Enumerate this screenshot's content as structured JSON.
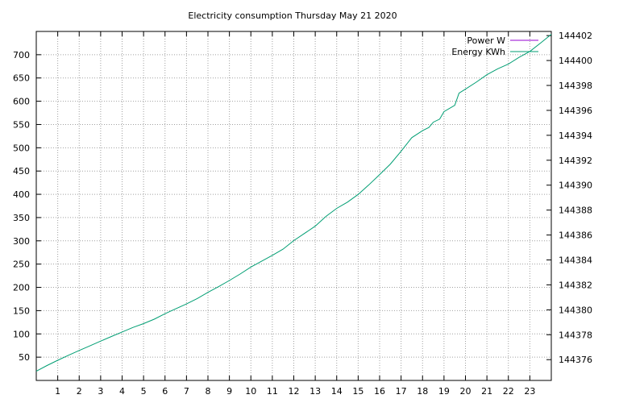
{
  "chart_data": {
    "type": "line",
    "title": "Electricity consumption Thursday May 21 2020",
    "xlabel": "",
    "ylabel": "",
    "y2label": "",
    "xlim": [
      0,
      24
    ],
    "ylim": [
      0,
      750
    ],
    "y2lim": [
      144374.333,
      144402.333
    ],
    "x_ticks": [
      1,
      2,
      3,
      4,
      5,
      6,
      7,
      8,
      9,
      10,
      11,
      12,
      13,
      14,
      15,
      16,
      17,
      18,
      19,
      20,
      21,
      22,
      23
    ],
    "y_ticks": [
      50,
      100,
      150,
      200,
      250,
      300,
      350,
      400,
      450,
      500,
      550,
      600,
      650,
      700
    ],
    "y2_ticks": [
      144376,
      144378,
      144380,
      144382,
      144384,
      144386,
      144388,
      144390,
      144392,
      144394,
      144396,
      144398,
      144400,
      144402
    ],
    "grid": true,
    "legend_position": "top-right",
    "series": [
      {
        "name": "Power W",
        "axis": "y",
        "color": "#9400d3",
        "x": [],
        "values": []
      },
      {
        "name": "Energy KWh",
        "axis": "y2",
        "color": "#009e73",
        "x": [
          0,
          0.5,
          1,
          1.5,
          2,
          2.5,
          3,
          3.5,
          4,
          4.5,
          5,
          5.5,
          6,
          6.5,
          7,
          7.5,
          8,
          8.5,
          9,
          9.5,
          10,
          10.5,
          11,
          11.5,
          12,
          12.5,
          13,
          13.5,
          14,
          14.5,
          15,
          15.5,
          16,
          16.5,
          17,
          17.5,
          18,
          18.3,
          18.5,
          18.8,
          19,
          19.5,
          19.7,
          20,
          20.5,
          21,
          21.5,
          22,
          22.5,
          23,
          23.5,
          24
        ],
        "values": [
          144375.07,
          144375.53,
          144375.95,
          144376.35,
          144376.74,
          144377.11,
          144377.49,
          144377.86,
          144378.22,
          144378.58,
          144378.89,
          144379.25,
          144379.69,
          144380.08,
          144380.47,
          144380.9,
          144381.4,
          144381.86,
          144382.35,
          144382.87,
          144383.43,
          144383.9,
          144384.37,
          144384.87,
          144385.55,
          144386.13,
          144386.71,
          144387.49,
          144388.14,
          144388.64,
          144389.26,
          144390.03,
          144390.85,
          144391.69,
          144392.72,
          144393.81,
          144394.37,
          144394.63,
          144395.05,
          144395.3,
          144395.9,
          144396.4,
          144397.38,
          144397.7,
          144398.26,
          144398.86,
          144399.33,
          144399.72,
          144400.26,
          144400.73,
          144401.4,
          144402.1
        ]
      }
    ]
  }
}
